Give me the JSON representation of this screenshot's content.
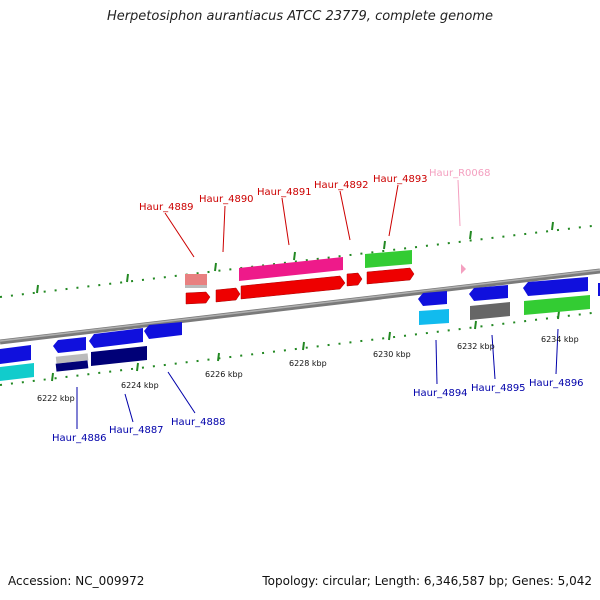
{
  "title": "Herpetosiphon aurantiacus ATCC 23779, complete genome",
  "footer": {
    "accession": "Accession: NC_009972",
    "summary": "Topology: circular; Length: 6,346,587 bp; Genes: 5,042"
  },
  "colors": {
    "backbone": "#808080",
    "forward_label": "#cc0000",
    "reverse_label": "#0000aa",
    "rna_label": "#f4a0c0",
    "tick": "#228822"
  },
  "scale_labels": [
    {
      "text": "6222 kbp",
      "pos_kbp": 6222
    },
    {
      "text": "6224 kbp",
      "pos_kbp": 6224
    },
    {
      "text": "6226 kbp",
      "pos_kbp": 6226
    },
    {
      "text": "6228 kbp",
      "pos_kbp": 6228
    },
    {
      "text": "6230 kbp",
      "pos_kbp": 6230
    },
    {
      "text": "6232 kbp",
      "pos_kbp": 6232
    },
    {
      "text": "6234 kbp",
      "pos_kbp": 6234
    }
  ],
  "genes": [
    {
      "name": "Haur_4886",
      "strand": "-"
    },
    {
      "name": "Haur_4887",
      "strand": "-"
    },
    {
      "name": "Haur_4888",
      "strand": "-"
    },
    {
      "name": "Haur_4889",
      "strand": "+"
    },
    {
      "name": "Haur_4890",
      "strand": "+"
    },
    {
      "name": "Haur_4891",
      "strand": "+"
    },
    {
      "name": "Haur_4892",
      "strand": "+"
    },
    {
      "name": "Haur_4893",
      "strand": "+"
    },
    {
      "name": "Haur_R0068",
      "strand": "+",
      "type": "RNA"
    },
    {
      "name": "Haur_4894",
      "strand": "-"
    },
    {
      "name": "Haur_4895",
      "strand": "-"
    },
    {
      "name": "Haur_4896",
      "strand": "-"
    }
  ]
}
